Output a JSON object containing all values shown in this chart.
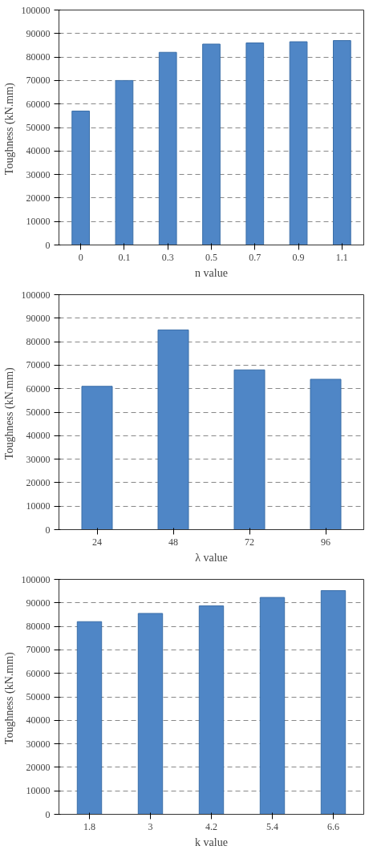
{
  "chart_data": [
    {
      "type": "bar",
      "categories": [
        "0",
        "0.1",
        "0.3",
        "0.5",
        "0.7",
        "0.9",
        "1.1"
      ],
      "values": [
        57000,
        70000,
        82000,
        85500,
        86000,
        86500,
        87000
      ],
      "color": "#4f86c6",
      "xlabel": "n value",
      "ylabel": "Toughness  (kN.mm)",
      "ylim": [
        0,
        100000
      ],
      "yticks": [
        0,
        10000,
        20000,
        30000,
        40000,
        50000,
        60000,
        70000,
        80000,
        90000,
        100000
      ],
      "grid": "y"
    },
    {
      "type": "bar",
      "categories": [
        "24",
        "48",
        "72",
        "96"
      ],
      "values": [
        61000,
        85000,
        68000,
        64000
      ],
      "color": "#4f86c6",
      "xlabel": "λ value",
      "ylabel": "Toughness  (kN.mm)",
      "ylim": [
        0,
        100000
      ],
      "yticks": [
        0,
        10000,
        20000,
        30000,
        40000,
        50000,
        60000,
        70000,
        80000,
        90000,
        100000
      ],
      "grid": "y"
    },
    {
      "type": "bar",
      "categories": [
        "1.8",
        "3",
        "4.2",
        "5.4",
        "6.6"
      ],
      "values": [
        82000,
        85500,
        88700,
        92300,
        95200
      ],
      "color": "#4f86c6",
      "xlabel": "k value",
      "ylabel": "Toughness  (kN.mm)",
      "ylim": [
        0,
        100000
      ],
      "yticks": [
        0,
        10000,
        20000,
        30000,
        40000,
        50000,
        60000,
        70000,
        80000,
        90000,
        100000
      ],
      "grid": "y"
    }
  ]
}
